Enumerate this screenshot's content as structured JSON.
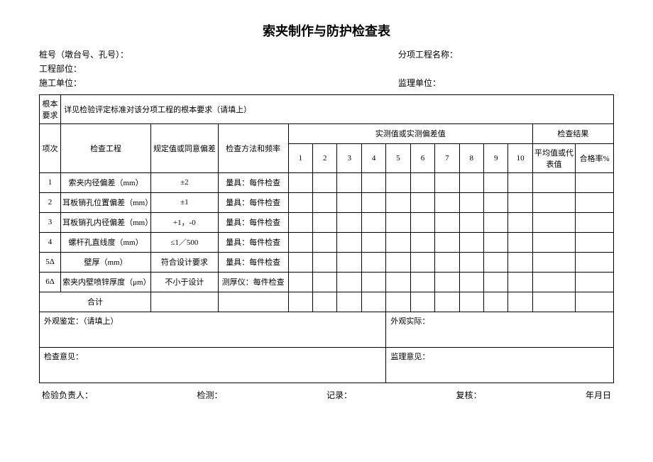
{
  "title": "索夹制作与防护检查表",
  "header": {
    "pile_no_label": "桩号（墩台号、孔号）：",
    "section_label": "工程部位：",
    "contractor_label": "施工单位：",
    "subproject_label": "分项工程名称：",
    "supervisor_label": "监理单位："
  },
  "basic_req": {
    "label": "根本要求",
    "text": "详见检验评定标准对该分项工程的根本要求（请填上）"
  },
  "table_headers": {
    "seq": "项次",
    "item": "检查工程",
    "spec": "规定值或同意偏差",
    "method": "检查方法和频率",
    "measured": "实测值或实测偏差值",
    "result": "检查结果",
    "avg": "平均值或代表值",
    "rate": "合格率%",
    "n1": "1",
    "n2": "2",
    "n3": "3",
    "n4": "4",
    "n5": "5",
    "n6": "6",
    "n7": "7",
    "n8": "8",
    "n9": "9",
    "n10": "10"
  },
  "rows": [
    {
      "seq": "1",
      "item": "索夹内径偏差（mm）",
      "spec": "±2",
      "method": "量具：每件检查"
    },
    {
      "seq": "2",
      "item": "耳板销孔位置偏差（mm）",
      "spec": "±1",
      "method": "量具：每件检查"
    },
    {
      "seq": "3",
      "item": "耳板销孔内径偏差（mm）",
      "spec": "+1，-0",
      "method": "量具：每件检查"
    },
    {
      "seq": "4",
      "item": "螺杆孔直线度（mm）",
      "spec": "≤1／500",
      "method": "量具：每件检查"
    },
    {
      "seq": "5Δ",
      "item": "壁厚（mm）",
      "spec": "符合设计要求",
      "method": "量具：每件检查"
    },
    {
      "seq": "6Δ",
      "item": "索夹内壁喷锌厚度（μm）",
      "spec": "不小于设计",
      "method": "测厚仪：每件检查"
    }
  ],
  "total_label": "合计",
  "appearance": {
    "judge_label": "外观鉴定：（请填上）",
    "actual_label": "外观实际："
  },
  "opinion": {
    "check_label": "检查意见：",
    "supervise_label": "监理意见："
  },
  "footer": {
    "inspector": "检验负责人：",
    "test": "检测：",
    "record": "记录：",
    "review": "复核：",
    "date": "年月日"
  }
}
